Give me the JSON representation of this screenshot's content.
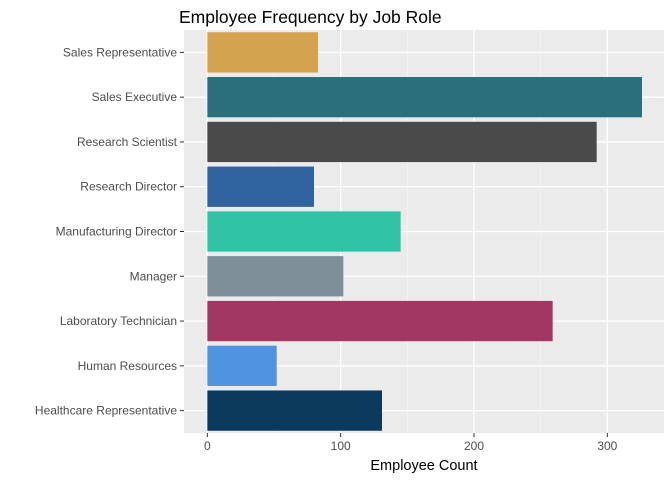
{
  "chart_data": {
    "type": "bar",
    "orientation": "horizontal",
    "title": "Employee Frequency by Job Role",
    "xlabel": "Employee Count",
    "ylabel": "",
    "categories": [
      "Sales Representative",
      "Sales Executive",
      "Research Scientist",
      "Research Director",
      "Manufacturing Director",
      "Manager",
      "Laboratory Technician",
      "Human Resources",
      "Healthcare Representative"
    ],
    "values": [
      83,
      326,
      292,
      80,
      145,
      102,
      259,
      52,
      131
    ],
    "colors": [
      "#d4a350",
      "#2b6f7b",
      "#4a4a4a",
      "#2f63a0",
      "#31c3a5",
      "#7f8f99",
      "#a23763",
      "#4f93e0",
      "#0b3a5c"
    ],
    "xlim": [
      -17.5,
      342.5
    ],
    "xticks": [
      0,
      100,
      200,
      300
    ],
    "grid": true,
    "legend": "none",
    "background": "#ebebeb"
  }
}
